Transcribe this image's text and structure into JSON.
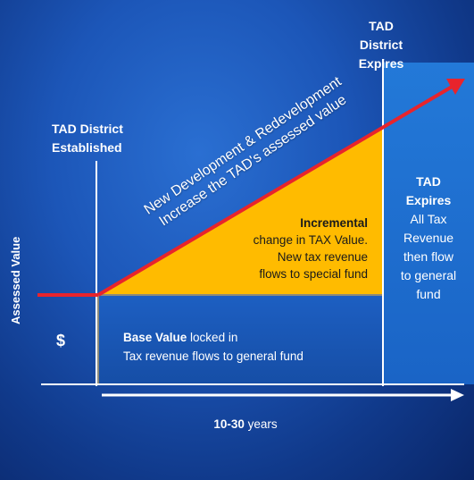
{
  "labels": {
    "established_line1": "TAD District",
    "established_line2": "Established",
    "expires_line1": "TAD District",
    "expires_line2": "Expires",
    "y_axis": "Assessed Value",
    "dollar": "$",
    "x_axis_bold": "10-30",
    "x_axis_rest": " years"
  },
  "arrow_text": {
    "line1": "New Development & Redevelopment",
    "line2": "Increase the TAD's assessed value"
  },
  "incremental": {
    "bold": "Incremental",
    "line2": "change in TAX Value.",
    "line3": "New tax revenue",
    "line4": "flows to special fund"
  },
  "base": {
    "bold": "Base Value",
    "rest": " locked in",
    "line2": "Tax revenue flows to general fund"
  },
  "expires_box": {
    "line1": "TAD",
    "line2": "Expires",
    "line3": "All Tax",
    "line4": "Revenue",
    "line5": "then flow",
    "line6": "to general",
    "line7": "fund"
  },
  "colors": {
    "incremental_fill": "#ffbb00",
    "base_fill": "#1a55b5",
    "expires_fill": "#1a6fd0",
    "arrow": "#e8242c",
    "lines": "#ffffff"
  }
}
